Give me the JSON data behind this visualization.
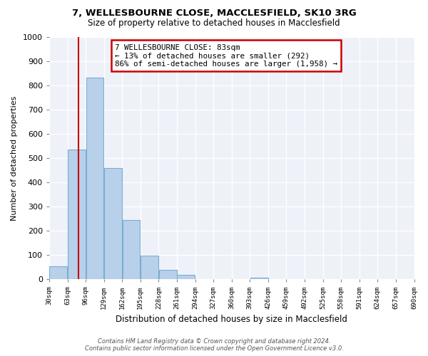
{
  "title1": "7, WELLESBOURNE CLOSE, MACCLESFIELD, SK10 3RG",
  "title2": "Size of property relative to detached houses in Macclesfield",
  "xlabel": "Distribution of detached houses by size in Macclesfield",
  "ylabel": "Number of detached properties",
  "bin_edges": [
    30,
    63,
    96,
    129,
    162,
    195,
    228,
    261,
    294,
    327,
    360,
    393,
    426,
    459,
    492,
    525,
    558,
    591,
    624,
    657,
    690
  ],
  "bin_labels": [
    "30sqm",
    "63sqm",
    "96sqm",
    "129sqm",
    "162sqm",
    "195sqm",
    "228sqm",
    "261sqm",
    "294sqm",
    "327sqm",
    "360sqm",
    "393sqm",
    "426sqm",
    "459sqm",
    "492sqm",
    "525sqm",
    "558sqm",
    "591sqm",
    "624sqm",
    "657sqm",
    "690sqm"
  ],
  "bar_heights": [
    55,
    535,
    830,
    460,
    245,
    97,
    38,
    20,
    0,
    0,
    0,
    8,
    0,
    0,
    0,
    0,
    0,
    0,
    0,
    0
  ],
  "bar_color": "#b8d0ea",
  "bar_edgecolor": "#7aadd4",
  "vline_x": 83,
  "vline_color": "#cc0000",
  "ylim": [
    0,
    1000
  ],
  "yticks": [
    0,
    100,
    200,
    300,
    400,
    500,
    600,
    700,
    800,
    900,
    1000
  ],
  "annotation_title": "7 WELLESBOURNE CLOSE: 83sqm",
  "annotation_line1": "← 13% of detached houses are smaller (292)",
  "annotation_line2": "86% of semi-detached houses are larger (1,958) →",
  "annotation_box_facecolor": "#ffffff",
  "annotation_box_edgecolor": "#cc0000",
  "footer1": "Contains HM Land Registry data © Crown copyright and database right 2024.",
  "footer2": "Contains public sector information licensed under the Open Government Licence v3.0.",
  "bg_color": "#ffffff",
  "plot_bg_color": "#eef2f8"
}
